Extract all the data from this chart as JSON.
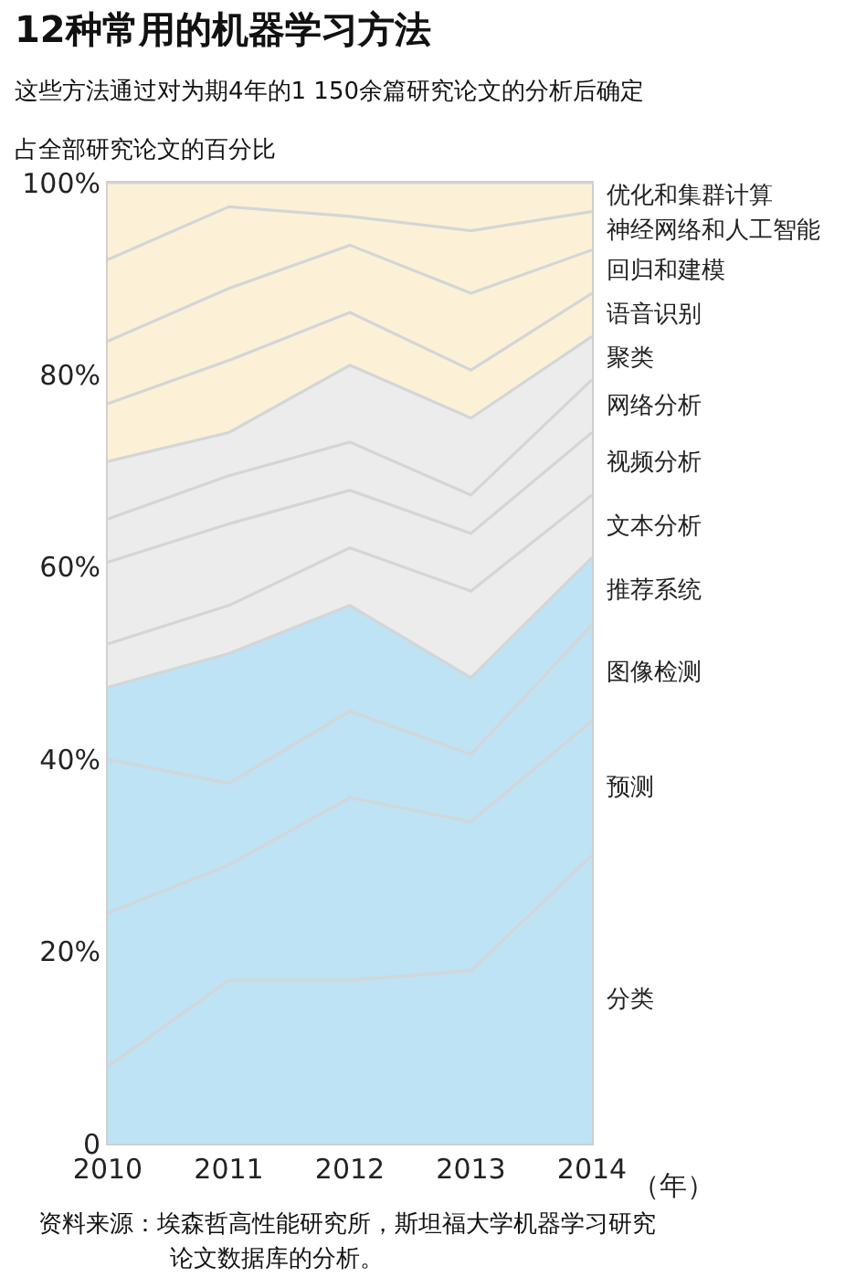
{
  "chart_data": {
    "type": "area",
    "stacked": true,
    "title": "12种常用的机器学习方法",
    "subtitle": "这些方法通过对为期4年的1 150余篇研究论文的分析后确定",
    "ylabel": "占全部研究论文的百分比",
    "xlabel": "（年）",
    "annotations": [
      "资料来源：埃森哲高性能研究所，斯坦福大学机器学习研究",
      "论文数据库的分析。"
    ],
    "x": [
      2010,
      2011,
      2012,
      2013,
      2014
    ],
    "xlim": [
      2010,
      2014
    ],
    "xticks": [
      2010,
      2011,
      2012,
      2013,
      2014
    ],
    "ylim": [
      0,
      100
    ],
    "yticks": [
      0,
      {
        "value": 20,
        "label": "20%"
      },
      {
        "value": 40,
        "label": "40%"
      },
      {
        "value": 60,
        "label": "60%"
      },
      {
        "value": 80,
        "label": "80%"
      },
      {
        "value": 100,
        "label": "100%"
      }
    ],
    "legend": false,
    "series": [
      {
        "name": "分类",
        "color": "#bde3f5",
        "values": [
          8,
          17,
          17,
          18,
          30
        ]
      },
      {
        "name": "预测",
        "color": "#bde3f5",
        "values": [
          16,
          12,
          19,
          15.5,
          14
        ]
      },
      {
        "name": "图像检测",
        "color": "#bde3f5",
        "values": [
          16,
          8.5,
          9,
          7,
          10
        ]
      },
      {
        "name": "推荐系统",
        "color": "#bde3f5",
        "values": [
          7.5,
          13.5,
          11,
          8,
          7
        ]
      },
      {
        "name": "文本分析",
        "color": "#ececec",
        "values": [
          4.5,
          5,
          6,
          9,
          6.5
        ]
      },
      {
        "name": "视频分析",
        "color": "#ececec",
        "values": [
          8.5,
          8.5,
          6,
          6,
          6.5
        ]
      },
      {
        "name": "网络分析",
        "color": "#ececec",
        "values": [
          4.5,
          5,
          5,
          4,
          5.5
        ]
      },
      {
        "name": "聚类",
        "color": "#ececec",
        "values": [
          6,
          4.5,
          8,
          8,
          4.5
        ]
      },
      {
        "name": "语音识别",
        "color": "#fcf1d6",
        "values": [
          6,
          7.5,
          5.5,
          5,
          4.5
        ]
      },
      {
        "name": "回归和建模",
        "color": "#fcf1d6",
        "values": [
          6.5,
          7.5,
          7,
          8,
          4.5
        ]
      },
      {
        "name": "神经网络和人工智能",
        "color": "#fcf1d6",
        "values": [
          8.5,
          8.5,
          3,
          6.5,
          4
        ]
      },
      {
        "name": "优化和集群计算",
        "color": "#fcf1d6",
        "values": [
          8,
          2.5,
          3.5,
          5,
          3
        ]
      }
    ]
  }
}
